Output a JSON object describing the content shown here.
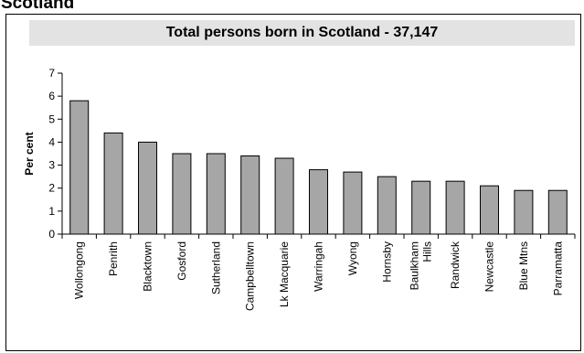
{
  "page_heading": "Scotland",
  "chart_data": {
    "type": "bar",
    "title": "Total persons born in Scotland - 37,147",
    "xlabel": "",
    "ylabel": "Per cent",
    "ylim": [
      0,
      7
    ],
    "yticks": [
      0,
      1,
      2,
      3,
      4,
      5,
      6,
      7
    ],
    "grid": false,
    "categories": [
      [
        "Wollongong"
      ],
      [
        "Penrith"
      ],
      [
        "Blacktown"
      ],
      [
        "Gosford"
      ],
      [
        "Sutherland"
      ],
      [
        "Campbelltown"
      ],
      [
        "Lk Macquarie"
      ],
      [
        "Warringah"
      ],
      [
        "Wyong"
      ],
      [
        "Hornsby"
      ],
      [
        "Baulkham",
        "Hills"
      ],
      [
        "Randwick"
      ],
      [
        "Newcastle"
      ],
      [
        "Blue Mtns"
      ],
      [
        "Parramatta"
      ]
    ],
    "values": [
      5.8,
      4.4,
      4.0,
      3.5,
      3.5,
      3.4,
      3.3,
      2.8,
      2.7,
      2.5,
      2.3,
      2.3,
      2.1,
      1.9,
      1.9
    ],
    "bar_color": "#a6a6a6"
  }
}
